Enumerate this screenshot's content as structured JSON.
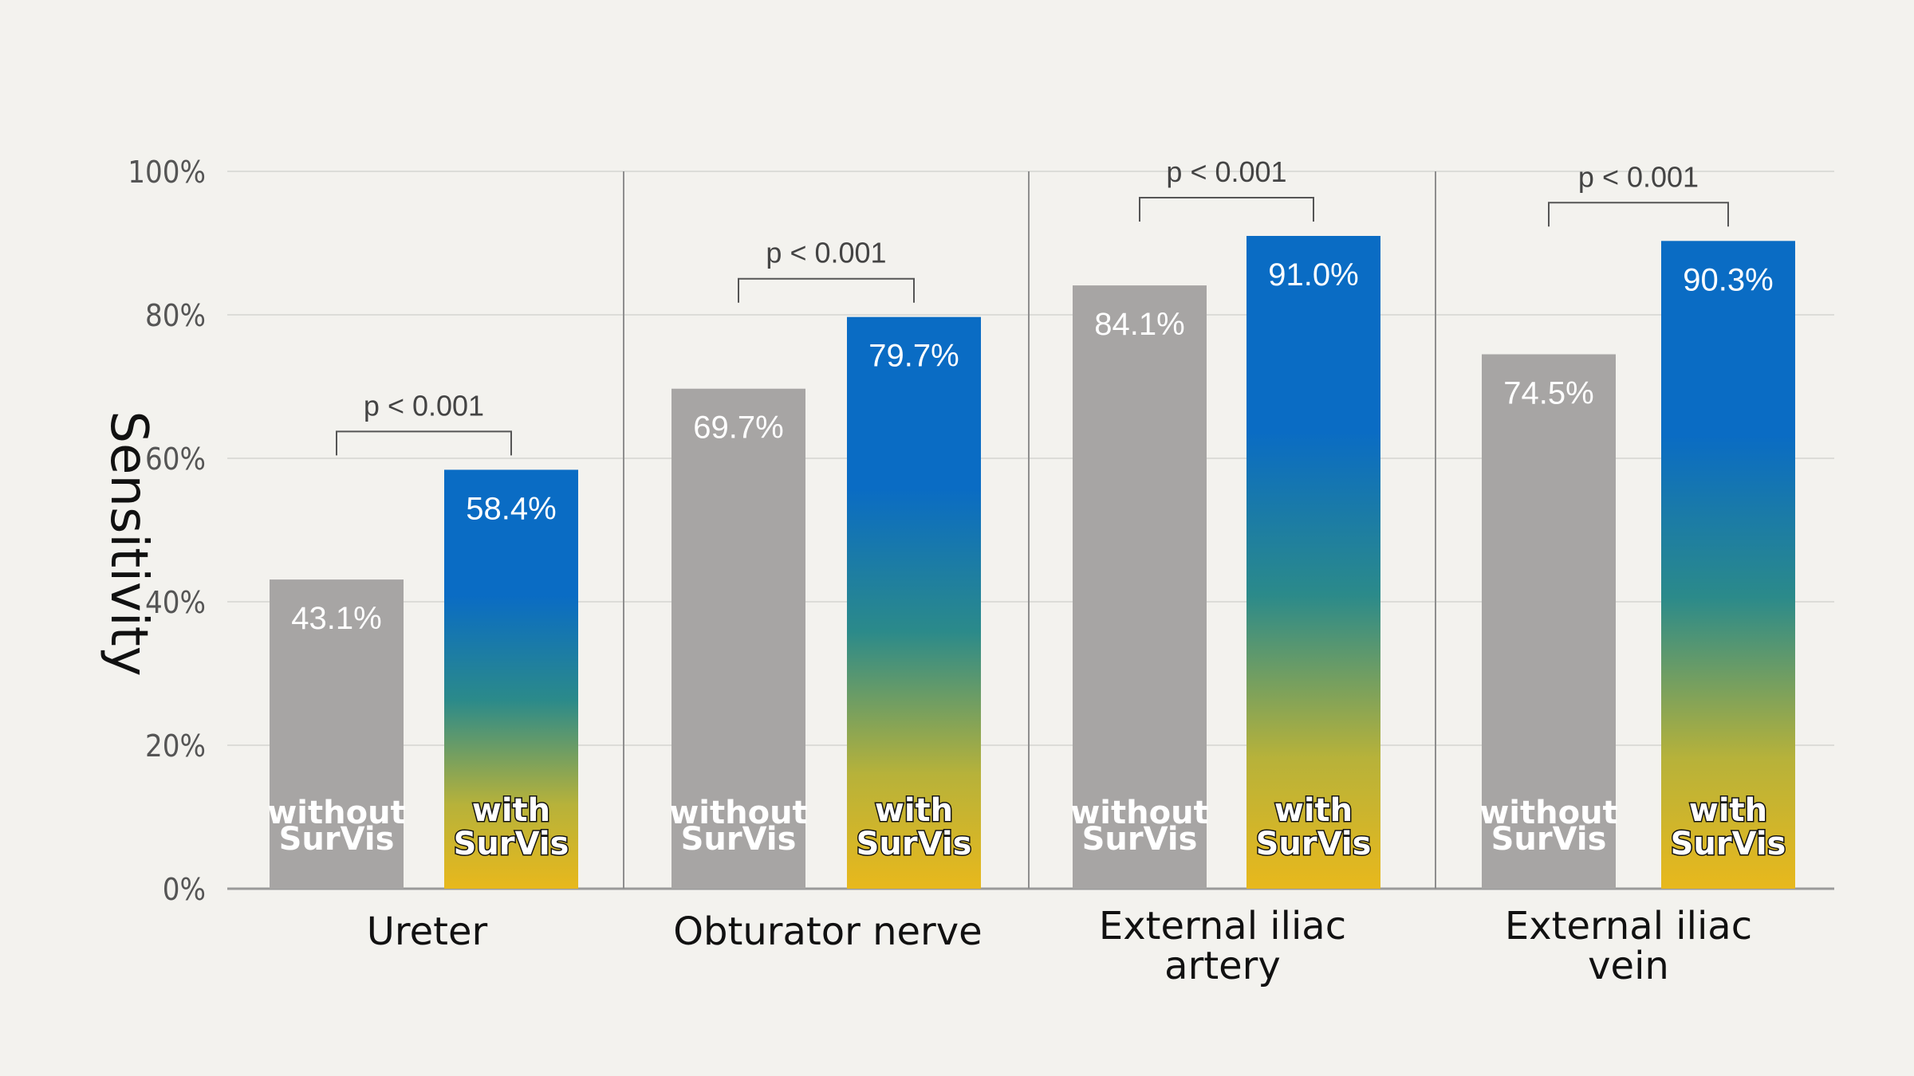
{
  "chart_data": {
    "type": "bar",
    "ylabel": "Sensitivity",
    "ylim": [
      0,
      100
    ],
    "yticks": [
      "0%",
      "20%",
      "40%",
      "60%",
      "80%",
      "100%"
    ],
    "categories": [
      "Ureter",
      "Obturator nerve",
      "External iliac artery",
      "External iliac vein"
    ],
    "category_lines": [
      [
        "Ureter"
      ],
      [
        "Obturator nerve"
      ],
      [
        "External iliac",
        "artery"
      ],
      [
        "External iliac",
        "vein"
      ]
    ],
    "series": [
      {
        "name": "without SurVis",
        "lines": [
          "without",
          "SurVis"
        ],
        "color": "#a7a5a4",
        "values": [
          43.1,
          69.7,
          84.1,
          74.5
        ],
        "labels": [
          "43.1%",
          "69.7%",
          "84.1%",
          "74.5%"
        ]
      },
      {
        "name": "with SurVis",
        "lines": [
          "with",
          "SurVis"
        ],
        "color": "#0a6cc4",
        "values": [
          58.4,
          79.7,
          91.0,
          90.3
        ],
        "labels": [
          "58.4%",
          "79.7%",
          "91.0%",
          "90.3%"
        ]
      }
    ],
    "annotations": [
      "p < 0.001",
      "p < 0.001",
      "p < 0.001",
      "p < 0.001"
    ],
    "grid": true
  }
}
